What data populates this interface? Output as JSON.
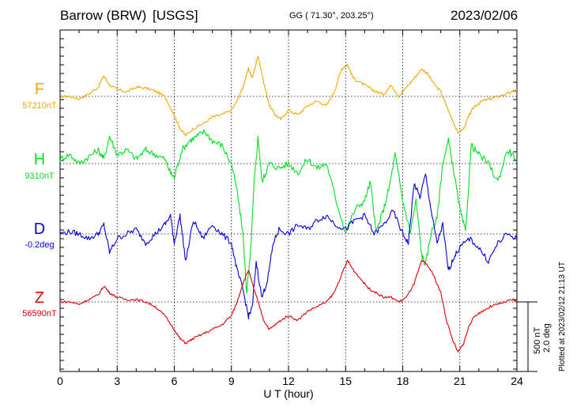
{
  "header": {
    "station": "Barrow (BRW)",
    "source": "[USGS]",
    "coords": "GG ( 71.30°, 203.25°)",
    "date": "2023/02/06"
  },
  "footer": {
    "plotted_at": "Plotted at 2023/02/12 21:13 UT"
  },
  "scale": {
    "nt": "500 nT",
    "deg": "2.0 deg"
  },
  "chart_data": {
    "type": "line",
    "title": "Barrow (BRW) [USGS]",
    "xlabel": "U T (hour)",
    "ylabel": "",
    "xlim": [
      0,
      24
    ],
    "x_ticks": [
      0,
      3,
      6,
      9,
      12,
      15,
      18,
      21,
      24
    ],
    "x_tick_labels": [
      "0",
      "3",
      "6",
      "9",
      "12",
      "15",
      "18",
      "21",
      "24"
    ],
    "grid": true,
    "units_note": "values are deviation from the printed baseline, in nT (D in deg)",
    "series": [
      {
        "name": "F",
        "baseline_label": "57210nT",
        "color": "#f5a800",
        "x": [
          0,
          0.5,
          1,
          1.5,
          2,
          2.3,
          2.6,
          3,
          3.5,
          4,
          4.5,
          5,
          5.5,
          6,
          6.3,
          6.6,
          7,
          7.5,
          8,
          8.5,
          9,
          9.3,
          9.6,
          9.9,
          10.1,
          10.4,
          10.7,
          11,
          11.3,
          11.6,
          12,
          12.5,
          13,
          13.5,
          14,
          14.4,
          14.8,
          15.1,
          15.4,
          15.8,
          16.2,
          16.6,
          17,
          17.4,
          17.8,
          18.2,
          18.6,
          19,
          19.3,
          19.6,
          20,
          20.3,
          20.6,
          20.9,
          21.2,
          21.5,
          21.8,
          22.2,
          22.6,
          23,
          23.4,
          23.8,
          24
        ],
        "values": [
          0,
          0,
          -5,
          5,
          20,
          45,
          25,
          15,
          10,
          20,
          18,
          12,
          0,
          -40,
          -70,
          -85,
          -70,
          -60,
          -45,
          -40,
          -30,
          -10,
          20,
          60,
          40,
          90,
          30,
          -20,
          -40,
          -50,
          -30,
          -40,
          -20,
          -10,
          -20,
          10,
          60,
          70,
          40,
          30,
          20,
          10,
          5,
          25,
          0,
          20,
          40,
          60,
          50,
          30,
          10,
          -20,
          -50,
          -80,
          -70,
          -40,
          -20,
          -10,
          -5,
          0,
          5,
          10,
          15
        ]
      },
      {
        "name": "H",
        "baseline_label": "9310nT",
        "color": "#00e020",
        "x": [
          0,
          0.5,
          1,
          1.5,
          2,
          2.3,
          2.6,
          3,
          3.5,
          4,
          4.5,
          5,
          5.5,
          5.8,
          6,
          6.4,
          6.8,
          7.2,
          7.6,
          8,
          8.5,
          9,
          9.3,
          9.6,
          9.8,
          10,
          10.2,
          10.4,
          10.6,
          10.8,
          11,
          11.5,
          12,
          12.5,
          13,
          13.5,
          14,
          14.5,
          15,
          15.5,
          16,
          16.3,
          16.6,
          17,
          17.3,
          17.6,
          18,
          18.4,
          18.7,
          19,
          19.2,
          19.5,
          19.8,
          20.1,
          20.4,
          20.7,
          21,
          21.3,
          21.6,
          22,
          22.5,
          23,
          23.5,
          24
        ],
        "values": [
          10,
          20,
          0,
          15,
          30,
          10,
          60,
          20,
          30,
          10,
          30,
          20,
          10,
          -20,
          -30,
          30,
          50,
          60,
          70,
          50,
          40,
          0,
          -60,
          -150,
          -280,
          -200,
          -40,
          60,
          -40,
          -20,
          0,
          -10,
          0,
          -20,
          10,
          -10,
          0,
          -80,
          -150,
          -100,
          -80,
          -40,
          -150,
          -100,
          -50,
          20,
          -80,
          -150,
          -80,
          -200,
          -220,
          -150,
          -120,
          0,
          50,
          -20,
          -100,
          -150,
          40,
          20,
          0,
          -40,
          30,
          10
        ]
      },
      {
        "name": "D",
        "baseline_label": "-0.2deg",
        "color": "#0000e0",
        "x": [
          0,
          0.5,
          1,
          1.5,
          2,
          2.3,
          2.6,
          3,
          3.5,
          4,
          4.5,
          5,
          5.5,
          5.8,
          6,
          6.3,
          6.6,
          7,
          7.5,
          8,
          8.5,
          9,
          9.3,
          9.6,
          9.9,
          10.1,
          10.3,
          10.6,
          10.9,
          11.2,
          11.5,
          12,
          12.5,
          13,
          13.5,
          14,
          14.5,
          15,
          15.5,
          16,
          16.5,
          17,
          17.5,
          18,
          18.3,
          18.6,
          18.9,
          19.2,
          19.5,
          19.8,
          20.1,
          20.4,
          20.7,
          21,
          21.5,
          22,
          22.5,
          23,
          23.5,
          24
        ],
        "values": [
          0,
          5,
          0,
          -10,
          0,
          20,
          -40,
          -10,
          0,
          10,
          -20,
          0,
          20,
          40,
          -20,
          40,
          -60,
          30,
          -10,
          20,
          0,
          -20,
          -80,
          -120,
          -180,
          -160,
          -60,
          -140,
          -100,
          -20,
          10,
          0,
          20,
          10,
          30,
          40,
          20,
          10,
          30,
          40,
          0,
          20,
          50,
          0,
          -20,
          110,
          80,
          130,
          50,
          -20,
          20,
          -80,
          -50,
          -30,
          -10,
          -30,
          -60,
          -20,
          0,
          -10
        ]
      },
      {
        "name": "Z",
        "baseline_label": "56590nT",
        "color": "#e00000",
        "x": [
          0,
          0.5,
          1,
          1.5,
          2,
          2.3,
          2.6,
          3,
          3.5,
          4,
          4.5,
          5,
          5.5,
          6,
          6.3,
          6.6,
          7,
          7.5,
          8,
          8.5,
          9,
          9.3,
          9.6,
          9.9,
          10.1,
          10.4,
          10.7,
          11,
          11.3,
          11.6,
          12,
          12.5,
          13,
          13.5,
          14,
          14.4,
          14.8,
          15.1,
          15.4,
          15.8,
          16.2,
          16.6,
          17,
          17.4,
          17.8,
          18.2,
          18.6,
          19,
          19.3,
          19.6,
          20,
          20.3,
          20.6,
          20.9,
          21.2,
          21.5,
          21.8,
          22.2,
          22.6,
          23,
          23.4,
          23.8,
          24
        ],
        "values": [
          0,
          0,
          -5,
          5,
          15,
          35,
          20,
          10,
          5,
          5,
          0,
          -10,
          -30,
          -60,
          -80,
          -90,
          -80,
          -70,
          -60,
          -50,
          -30,
          0,
          40,
          70,
          40,
          0,
          -40,
          -60,
          -50,
          -40,
          -30,
          -40,
          -20,
          -10,
          0,
          20,
          60,
          90,
          70,
          50,
          30,
          20,
          10,
          10,
          0,
          10,
          40,
          90,
          80,
          60,
          20,
          -40,
          -80,
          -110,
          -90,
          -50,
          -30,
          -20,
          -10,
          -5,
          0,
          5,
          0
        ]
      }
    ]
  }
}
